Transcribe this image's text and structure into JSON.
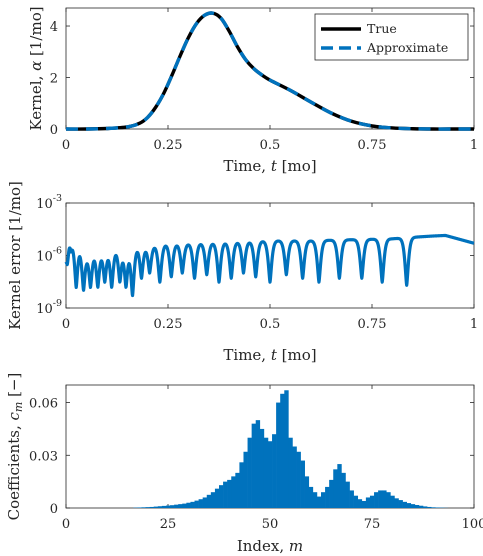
{
  "chart_data": [
    {
      "type": "line",
      "xlabel": "Time, t [mo]",
      "ylabel": "Kernel, α [1/mo]",
      "xlim": [
        0,
        1
      ],
      "ylim": [
        0,
        4.7
      ],
      "xticks": [
        0,
        0.25,
        0.5,
        0.75,
        1
      ],
      "xtick_labels": [
        "0",
        "0.25",
        "0.5",
        "0.75",
        "1"
      ],
      "yticks": [
        0,
        2,
        4
      ],
      "ytick_labels": [
        "0",
        "2",
        "4"
      ],
      "grid": false,
      "legend_position": "top-right",
      "x": [
        0.0,
        0.05,
        0.1,
        0.15,
        0.18,
        0.2,
        0.22,
        0.24,
        0.26,
        0.28,
        0.3,
        0.32,
        0.34,
        0.36,
        0.38,
        0.4,
        0.42,
        0.44,
        0.46,
        0.48,
        0.5,
        0.55,
        0.6,
        0.65,
        0.7,
        0.75,
        0.8,
        0.85,
        0.9,
        0.95,
        1.0
      ],
      "series": [
        {
          "name": "True",
          "color": "#000000",
          "values": [
            0.0,
            0.0,
            0.02,
            0.08,
            0.22,
            0.45,
            0.85,
            1.4,
            2.1,
            2.85,
            3.55,
            4.1,
            4.42,
            4.5,
            4.3,
            3.8,
            3.2,
            2.7,
            2.35,
            2.1,
            1.9,
            1.5,
            1.05,
            0.62,
            0.3,
            0.12,
            0.04,
            0.01,
            0.0,
            0.0,
            0.0
          ]
        },
        {
          "name": "Approximate",
          "color": "#0072bd",
          "values": [
            0.0,
            0.0,
            0.02,
            0.08,
            0.22,
            0.45,
            0.85,
            1.4,
            2.1,
            2.85,
            3.55,
            4.1,
            4.42,
            4.5,
            4.3,
            3.8,
            3.2,
            2.7,
            2.35,
            2.1,
            1.9,
            1.5,
            1.05,
            0.62,
            0.3,
            0.12,
            0.04,
            0.01,
            0.0,
            0.0,
            0.0
          ]
        }
      ]
    },
    {
      "type": "line",
      "xlabel": "Time, t [mo]",
      "ylabel": "Kernel error [1/mo]",
      "yscale": "log",
      "xlim": [
        0,
        1
      ],
      "ylim": [
        1e-09,
        0.001
      ],
      "xticks": [
        0,
        0.25,
        0.5,
        0.75,
        1
      ],
      "xtick_labels": [
        "0",
        "0.25",
        "0.5",
        "0.75",
        "1"
      ],
      "yticks": [
        1e-09,
        1e-06,
        0.001
      ],
      "ytick_labels": [
        "10",
        "10",
        "10"
      ],
      "ytick_exponents": [
        "-9",
        "-6",
        "-3"
      ],
      "grid": false,
      "series": [
        {
          "color": "#0072bd",
          "envelope": [
            [
              0.0,
              1e-05
            ],
            [
              0.01,
              3e-05
            ],
            [
              0.05,
              2e-06
            ],
            [
              0.1,
              3e-06
            ],
            [
              0.15,
              4e-06
            ],
            [
              0.2,
              4e-06
            ],
            [
              0.25,
              5e-06
            ],
            [
              0.3,
              5e-06
            ],
            [
              0.4,
              6e-06
            ],
            [
              0.5,
              7e-06
            ],
            [
              0.6,
              7e-06
            ],
            [
              0.7,
              8e-06
            ],
            [
              0.8,
              9e-06
            ],
            [
              0.85,
              1.1e-05
            ],
            [
              0.9,
              1.3e-05
            ],
            [
              0.93,
              1.4e-05
            ],
            [
              1.0,
              5e-06
            ]
          ],
          "dips": [
            [
              0.0,
              1e-06
            ],
            [
              0.003,
              3e-07
            ],
            [
              0.012,
              2e-06
            ],
            [
              0.025,
              1.5e-08
            ],
            [
              0.043,
              1e-08
            ],
            [
              0.06,
              1.5e-08
            ],
            [
              0.078,
              1.5e-08
            ],
            [
              0.095,
              3e-08
            ],
            [
              0.112,
              1.5e-08
            ],
            [
              0.132,
              3e-08
            ],
            [
              0.147,
              1.5e-08
            ],
            [
              0.163,
              5e-09
            ],
            [
              0.185,
              5e-08
            ],
            [
              0.205,
              1e-07
            ],
            [
              0.23,
              3e-08
            ],
            [
              0.258,
              6e-08
            ],
            [
              0.285,
              1e-07
            ],
            [
              0.315,
              5e-08
            ],
            [
              0.345,
              8e-08
            ],
            [
              0.375,
              3e-08
            ],
            [
              0.405,
              5e-08
            ],
            [
              0.435,
              1e-07
            ],
            [
              0.465,
              6e-08
            ],
            [
              0.5,
              3e-08
            ],
            [
              0.54,
              8e-08
            ],
            [
              0.58,
              5e-08
            ],
            [
              0.62,
              3e-08
            ],
            [
              0.67,
              5e-08
            ],
            [
              0.725,
              5e-08
            ],
            [
              0.775,
              3e-08
            ],
            [
              0.835,
              2e-08
            ]
          ]
        }
      ]
    },
    {
      "type": "bar",
      "xlabel": "Index, m",
      "ylabel": "Coefficients, c_m [−]",
      "xlim": [
        0,
        100
      ],
      "ylim": [
        0,
        0.07
      ],
      "xticks": [
        0,
        25,
        50,
        75,
        100
      ],
      "xtick_labels": [
        "0",
        "25",
        "50",
        "75",
        "100"
      ],
      "yticks": [
        0,
        0.03,
        0.06
      ],
      "ytick_labels": [
        "0",
        "0.03",
        "0.06"
      ],
      "grid": false,
      "color": "#0072bd",
      "categories": [
        1,
        2,
        3,
        4,
        5,
        6,
        7,
        8,
        9,
        10,
        11,
        12,
        13,
        14,
        15,
        16,
        17,
        18,
        19,
        20,
        21,
        22,
        23,
        24,
        25,
        26,
        27,
        28,
        29,
        30,
        31,
        32,
        33,
        34,
        35,
        36,
        37,
        38,
        39,
        40,
        41,
        42,
        43,
        44,
        45,
        46,
        47,
        48,
        49,
        50,
        51,
        52,
        53,
        54,
        55,
        56,
        57,
        58,
        59,
        60,
        61,
        62,
        63,
        64,
        65,
        66,
        67,
        68,
        69,
        70,
        71,
        72,
        73,
        74,
        75,
        76,
        77,
        78,
        79,
        80,
        81,
        82,
        83,
        84,
        85,
        86,
        87,
        88,
        89,
        90,
        91,
        92,
        93,
        94,
        95,
        96,
        97,
        98,
        99,
        100
      ],
      "values": [
        0.0,
        0.0,
        0.0,
        0.0,
        0.0,
        0.0,
        0.0,
        0.0,
        0.0,
        0.0,
        0.0,
        0.0,
        0.0,
        0.0,
        0.0,
        0.0,
        0.0002,
        0.0003,
        0.0004,
        0.0005,
        0.0006,
        0.0008,
        0.001,
        0.0012,
        0.0014,
        0.0016,
        0.0019,
        0.0022,
        0.0025,
        0.003,
        0.0035,
        0.0042,
        0.005,
        0.006,
        0.0075,
        0.009,
        0.011,
        0.013,
        0.015,
        0.016,
        0.018,
        0.02,
        0.026,
        0.032,
        0.04,
        0.048,
        0.05,
        0.045,
        0.04,
        0.038,
        0.042,
        0.06,
        0.065,
        0.067,
        0.04,
        0.035,
        0.032,
        0.027,
        0.018,
        0.012,
        0.009,
        0.0065,
        0.009,
        0.012,
        0.016,
        0.022,
        0.025,
        0.02,
        0.015,
        0.01,
        0.007,
        0.005,
        0.004,
        0.006,
        0.007,
        0.009,
        0.01,
        0.01,
        0.009,
        0.007,
        0.0055,
        0.0045,
        0.0035,
        0.0028,
        0.0022,
        0.0017,
        0.0013,
        0.0009,
        0.0006,
        0.0004,
        0.0003,
        0.0002,
        0.0001,
        0.0,
        0.0,
        0.0,
        0.0,
        0.0,
        0.0,
        0.0
      ]
    }
  ]
}
